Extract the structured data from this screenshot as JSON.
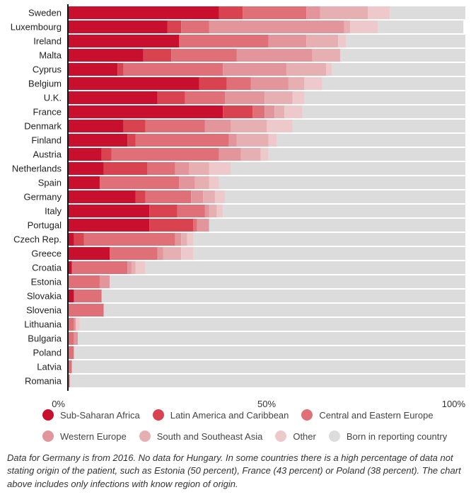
{
  "chart_data": {
    "type": "bar",
    "orientation": "horizontal",
    "stacked": true,
    "categories": [
      "Sweden",
      "Luxembourg",
      "Ireland",
      "Malta",
      "Cyprus",
      "Belgium",
      "U.K.",
      "France",
      "Denmark",
      "Finland",
      "Austria",
      "Netherlands",
      "Spain",
      "Germany",
      "Italy",
      "Portugal",
      "Czech Rep.",
      "Greece",
      "Croatia",
      "Estonia",
      "Slovakia",
      "Slovenia",
      "Lithuania",
      "Bulgaria",
      "Poland",
      "Latvia",
      "Romania"
    ],
    "series": [
      {
        "name": "Sub-Saharan Africa",
        "color": "#c8102e",
        "values": [
          38,
          25,
          28,
          19,
          12.5,
          33,
          22.5,
          39,
          14,
          15,
          8.5,
          9,
          8,
          17,
          20.5,
          20.5,
          1.5,
          10.5,
          1,
          0,
          1.5,
          0,
          0,
          0,
          0,
          0,
          0
        ]
      },
      {
        "name": "Latin America and Caribbean",
        "color": "#d94350",
        "values": [
          6,
          3.5,
          0,
          7,
          1.5,
          7,
          7,
          7.5,
          5.5,
          2,
          2.5,
          11,
          0,
          2.5,
          7,
          11,
          2.5,
          0,
          0,
          0,
          0,
          0,
          0,
          0,
          0,
          0,
          0
        ]
      },
      {
        "name": "Central and Eastern Europe",
        "color": "#e07078",
        "values": [
          16,
          7,
          22.5,
          16.5,
          25,
          6,
          10,
          3,
          15,
          23.5,
          27,
          7,
          20,
          11.5,
          7,
          1,
          23,
          12,
          14,
          8,
          7,
          9,
          1.5,
          1.5,
          1.5,
          1,
          0.5
        ]
      },
      {
        "name": "Western Europe",
        "color": "#e2969b",
        "values": [
          3.5,
          34,
          9.5,
          19,
          16,
          9.5,
          10,
          2.5,
          6.5,
          2,
          5.5,
          3.5,
          4,
          3,
          1,
          3,
          1.5,
          1.5,
          1,
          2.5,
          0,
          0,
          0.5,
          1,
          0,
          0,
          0
        ]
      },
      {
        "name": "South and Southeast Asia",
        "color": "#e6b0b3",
        "values": [
          12,
          1.5,
          8,
          7,
          10,
          4,
          7,
          2.5,
          9,
          8,
          5,
          5,
          3.5,
          3,
          2,
          0,
          1.5,
          4.5,
          1,
          0,
          0,
          0,
          0,
          0,
          0,
          0,
          0
        ]
      },
      {
        "name": "Other",
        "color": "#eec9cb",
        "values": [
          5.5,
          7,
          2,
          0,
          1.5,
          4.5,
          3,
          4.5,
          6.5,
          2,
          2,
          5.5,
          2.5,
          2.5,
          1.5,
          0,
          1.5,
          3,
          2.5,
          0,
          0,
          0,
          1,
          0,
          0,
          0,
          0
        ]
      },
      {
        "name": "Born in reporting country",
        "color": "#dcdcdc",
        "values": [
          19,
          21.5,
          30,
          31.5,
          33.5,
          36,
          40.5,
          41,
          43.5,
          47.5,
          49.5,
          59,
          62,
          60.5,
          61,
          64.5,
          68.5,
          68.5,
          80.5,
          89.5,
          91.5,
          91,
          97,
          97.5,
          98.5,
          99,
          99.5
        ]
      }
    ],
    "xlim": [
      0,
      100
    ],
    "xticks": [
      "0%",
      "50%",
      "100%"
    ],
    "xlabel": "",
    "ylabel": "",
    "legend_position": "bottom"
  },
  "legend": {
    "row1": [
      "Sub-Saharan Africa",
      "Latin America and Caribbean",
      "Central and Eastern Europe"
    ],
    "row2": [
      "Western Europe",
      "South and Southeast Asia",
      "Other",
      "Born in reporting country"
    ]
  },
  "note": "Data for Germany is from 2016. No data for Hungary. In some countries there is a high percentage of data not stating origin of the patient, such as Estonia (50 percent), France (43 percent) or Poland (38 percent). The chart above includes only infections with know region of origin."
}
